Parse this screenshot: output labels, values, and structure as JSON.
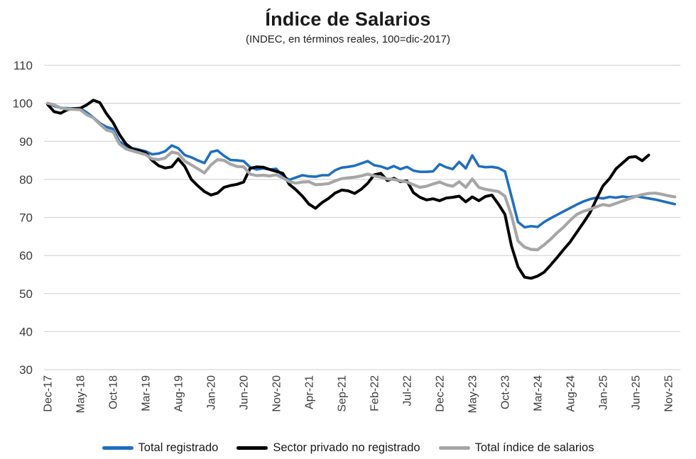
{
  "chart_data": {
    "type": "line",
    "title": "Índice de Salarios",
    "subtitle": "(INDEC, en términos reales, 100=dic-2017)",
    "ylim": [
      30,
      110
    ],
    "y_ticks": [
      110,
      100,
      90,
      80,
      70,
      60,
      50,
      40,
      30
    ],
    "grid": "horizontal",
    "legend_position": "bottom",
    "x_tick_interval": 5,
    "x_tick_labels": [
      "Dec-17",
      "May-18",
      "Oct-18",
      "Mar-19",
      "Aug-19",
      "Jan-20",
      "Jun-20",
      "Nov-20",
      "Apr-21",
      "Sep-21",
      "Feb-22",
      "Jul-22",
      "Dec-22",
      "May-23",
      "Oct-23",
      "Mar-24",
      "Aug-24",
      "Jan-25",
      "Jun-25",
      "Nov-25"
    ],
    "x_start_label": "Dec-17",
    "x_total_points": 97,
    "axis_label_color": "#3b3b3b",
    "gridline_color": "#d6d6d6",
    "series": [
      {
        "name": "Total registrado",
        "color": "#1f6fbf",
        "stroke_width": 3.6,
        "values": [
          100,
          99.3,
          98.8,
          98.7,
          98.6,
          98.7,
          97.6,
          96.3,
          94.8,
          93.8,
          93.3,
          90.0,
          88.7,
          88.2,
          87.8,
          87.4,
          86.6,
          86.8,
          87.4,
          88.9,
          88.2,
          86.4,
          85.8,
          85.0,
          84.3,
          87.2,
          87.6,
          86.2,
          85.1,
          85.0,
          84.8,
          83.2,
          82.6,
          82.9,
          82.6,
          82.8,
          80.9,
          79.9,
          80.5,
          81.1,
          80.8,
          80.7,
          81.1,
          81.1,
          82.4,
          83.1,
          83.3,
          83.6,
          84.2,
          84.8,
          83.7,
          83.4,
          82.8,
          83.5,
          82.7,
          83.3,
          82.3,
          82.0,
          82.0,
          82.1,
          84.0,
          83.2,
          82.7,
          84.6,
          82.9,
          86.3,
          83.5,
          83.2,
          83.3,
          83.0,
          82.1,
          75.5,
          68.8,
          67.4,
          67.7,
          67.5,
          68.8,
          69.8,
          70.7,
          71.6,
          72.5,
          73.4,
          74.2,
          74.8,
          75.2,
          75.0,
          75.4,
          75.2,
          75.5,
          75.3,
          75.6,
          75.3,
          75.0,
          74.7,
          74.3,
          73.9,
          73.5
        ]
      },
      {
        "name": "Sector privado no registrado",
        "color": "#000000",
        "stroke_width": 4.0,
        "values": [
          99.7,
          97.8,
          97.4,
          98.3,
          98.6,
          98.7,
          99.6,
          100.8,
          100.2,
          97.3,
          95.0,
          91.8,
          89.3,
          88.0,
          87.6,
          87.0,
          85.0,
          83.6,
          83.0,
          83.3,
          85.4,
          83.4,
          80.0,
          78.3,
          76.8,
          75.9,
          76.4,
          77.9,
          78.4,
          78.7,
          79.3,
          82.9,
          83.3,
          83.2,
          82.6,
          82.1,
          81.6,
          78.7,
          77.3,
          75.6,
          73.5,
          72.4,
          73.9,
          75.0,
          76.4,
          77.2,
          77.0,
          76.3,
          77.4,
          79.0,
          81.2,
          81.6,
          79.7,
          80.3,
          79.4,
          79.6,
          76.5,
          75.3,
          74.6,
          74.9,
          74.4,
          75.1,
          75.3,
          75.6,
          74.1,
          75.4,
          74.4,
          75.5,
          75.9,
          73.5,
          70.8,
          62.5,
          57.0,
          54.3,
          54.0,
          54.6,
          55.6,
          57.5,
          59.5,
          61.6,
          63.6,
          66.1,
          68.6,
          71.2,
          74.8,
          78.3,
          80.2,
          82.8,
          84.3,
          85.8,
          86.0,
          84.9,
          86.4
        ]
      },
      {
        "name": "Total índice de salarios",
        "color": "#a6a6a6",
        "stroke_width": 4.2,
        "values": [
          100,
          99.6,
          98.8,
          98.5,
          98.4,
          98.3,
          97.0,
          96.2,
          94.5,
          93.0,
          92.5,
          89.3,
          88.0,
          87.5,
          87.0,
          86.5,
          85.4,
          85.2,
          85.6,
          87.2,
          86.8,
          84.8,
          83.8,
          82.8,
          81.7,
          83.8,
          85.2,
          85.0,
          84.0,
          83.4,
          83.3,
          81.4,
          81.0,
          81.1,
          80.9,
          81.2,
          80.4,
          79.4,
          79.0,
          79.3,
          79.4,
          78.6,
          78.7,
          78.9,
          79.6,
          80.2,
          80.4,
          80.6,
          80.9,
          81.4,
          80.9,
          80.6,
          80.1,
          80.0,
          79.6,
          79.3,
          78.6,
          77.9,
          78.2,
          78.8,
          79.3,
          78.6,
          78.2,
          79.4,
          77.9,
          80.1,
          77.9,
          77.4,
          77.1,
          76.8,
          75.6,
          70.5,
          63.8,
          62.2,
          61.6,
          61.5,
          62.8,
          64.3,
          66.0,
          67.5,
          69.3,
          70.8,
          71.6,
          72.1,
          72.8,
          73.4,
          73.1,
          73.7,
          74.3,
          74.9,
          75.5,
          76.0,
          76.3,
          76.4,
          76.1,
          75.7,
          75.4
        ]
      }
    ]
  }
}
